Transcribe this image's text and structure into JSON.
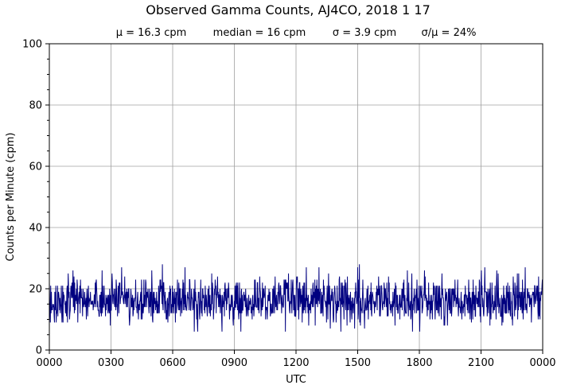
{
  "chart_data": {
    "type": "line",
    "title": "Observed Gamma Counts, AJ4CO, 2018 1 17",
    "subtitle_stats": [
      "μ = 16.3 cpm",
      "median = 16 cpm",
      "σ = 3.9 cpm",
      "σ/μ = 24%"
    ],
    "xlabel": "UTC",
    "ylabel": "Counts per Minute (cpm)",
    "xlim": [
      0,
      1440
    ],
    "ylim": [
      0,
      100
    ],
    "x_ticks": [
      0,
      180,
      360,
      540,
      720,
      900,
      1080,
      1260,
      1440
    ],
    "x_tick_labels": [
      "0000",
      "0300",
      "0600",
      "0900",
      "1200",
      "1500",
      "1800",
      "2100",
      "0000"
    ],
    "y_ticks": [
      0,
      20,
      40,
      60,
      80,
      100
    ],
    "y_tick_labels": [
      "0",
      "20",
      "40",
      "60",
      "80",
      "100"
    ],
    "y_minor_step": 5,
    "grid": true,
    "line_color": "#000080",
    "grid_color": "#a0a0a0",
    "series": [
      {
        "x_start": 0,
        "x_step": 1,
        "count": 1440,
        "mean": 16.3,
        "sigma": 3.9,
        "min": 6,
        "max": 31
      }
    ]
  }
}
